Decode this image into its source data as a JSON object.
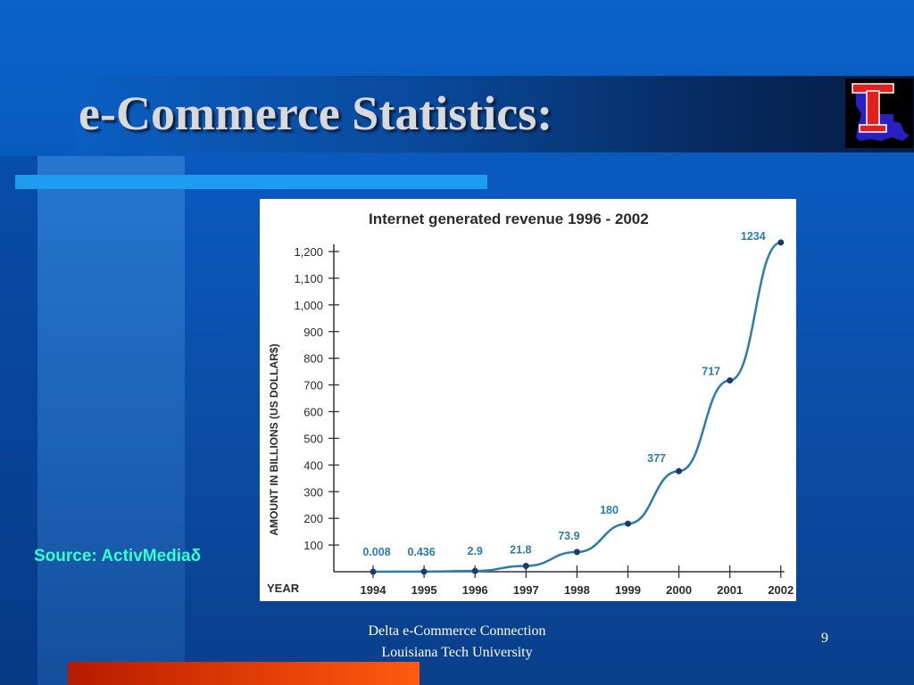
{
  "slide": {
    "title": "e-Commerce Statistics:",
    "source": "Source: ActivMediaδ",
    "footer_line1": "Delta e-Commerce Connection",
    "footer_line2": "Louisiana Tech University",
    "page_number": "9"
  },
  "colors": {
    "background": "#0a56b8",
    "accent_bar": "#1e9cf0",
    "source_text": "#33ffcc",
    "bottom_bar": "#e03a05",
    "series_line": "#2a7bb0",
    "logo_red": "#e0201a",
    "logo_blue": "#2a1fc0"
  },
  "logo": {
    "name": "louisiana-tech-logo",
    "lettering": "T"
  },
  "chart_data": {
    "type": "line",
    "title": "Internet generated revenue 1996 - 2002",
    "ylabel": "AMOUNT IN BILLIONS  (US DOLLAR$)",
    "xlabel": "YEAR",
    "ylim": [
      0,
      1200
    ],
    "yticks": [
      100,
      200,
      300,
      400,
      500,
      600,
      700,
      800,
      900,
      1000,
      1100,
      1200
    ],
    "ytick_labels": [
      "100",
      "200",
      "300",
      "400",
      "500",
      "600",
      "700",
      "800",
      "900",
      "1,000",
      "1,100",
      "1,200"
    ],
    "categories": [
      "1994",
      "1995",
      "1996",
      "1997",
      "1998",
      "1999",
      "2000",
      "2001",
      "2002"
    ],
    "values": [
      0.008,
      0.436,
      2.9,
      21.8,
      73.9,
      180,
      377,
      717,
      1234
    ],
    "data_labels": [
      "0.008",
      "0.436",
      "2.9",
      "21.8",
      "73.9",
      "180",
      "377",
      "717",
      "1234"
    ],
    "grid": false,
    "legend": "none"
  }
}
